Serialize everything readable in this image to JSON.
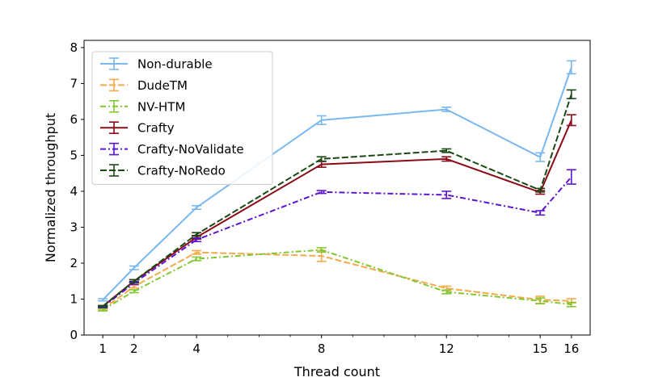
{
  "chart_data": {
    "type": "line",
    "xlabel": "Thread count",
    "ylabel": "Normalized throughput",
    "x": [
      1,
      2,
      4,
      8,
      12,
      15,
      16
    ],
    "xticks": [
      1,
      2,
      4,
      8,
      12,
      15,
      16
    ],
    "xlim": [
      0.4,
      16.6
    ],
    "ylim": [
      0,
      8.2
    ],
    "yticks": [
      0,
      1,
      2,
      3,
      4,
      5,
      6,
      7,
      8
    ],
    "legend_position": "top-left",
    "series": [
      {
        "name": "Non-durable",
        "color": "#7ab8f0",
        "dash": "solid",
        "values": [
          0.98,
          1.87,
          3.55,
          5.98,
          6.28,
          4.95,
          7.45
        ],
        "errors": [
          0.03,
          0.05,
          0.05,
          0.12,
          0.06,
          0.12,
          0.18
        ]
      },
      {
        "name": "DudeTM",
        "color": "#f5a94c",
        "dash": "dashed",
        "values": [
          0.72,
          1.35,
          2.3,
          2.2,
          1.3,
          0.98,
          0.95
        ],
        "errors": [
          0.03,
          0.04,
          0.05,
          0.15,
          0.06,
          0.1,
          0.06
        ]
      },
      {
        "name": "NV-HTM",
        "color": "#82c832",
        "dash": "dashdot",
        "values": [
          0.7,
          1.22,
          2.12,
          2.37,
          1.2,
          0.95,
          0.85
        ],
        "errors": [
          0.03,
          0.04,
          0.05,
          0.06,
          0.05,
          0.08,
          0.06
        ]
      },
      {
        "name": "Crafty",
        "color": "#8b0a18",
        "dash": "solid",
        "values": [
          0.8,
          1.5,
          2.72,
          4.75,
          4.9,
          3.97,
          5.98
        ],
        "errors": [
          0.02,
          0.04,
          0.05,
          0.08,
          0.06,
          0.05,
          0.15
        ]
      },
      {
        "name": "Crafty-NoValidate",
        "color": "#5a14d2",
        "dash": "dashdot",
        "values": [
          0.78,
          1.45,
          2.65,
          3.98,
          3.9,
          3.4,
          4.4
        ],
        "errors": [
          0.02,
          0.04,
          0.05,
          0.04,
          0.1,
          0.06,
          0.2
        ]
      },
      {
        "name": "Crafty-NoRedo",
        "color": "#1a4a14",
        "dash": "dashed",
        "values": [
          0.8,
          1.5,
          2.8,
          4.9,
          5.13,
          4.03,
          6.7
        ],
        "errors": [
          0.02,
          0.04,
          0.05,
          0.06,
          0.05,
          0.05,
          0.12
        ]
      }
    ]
  }
}
